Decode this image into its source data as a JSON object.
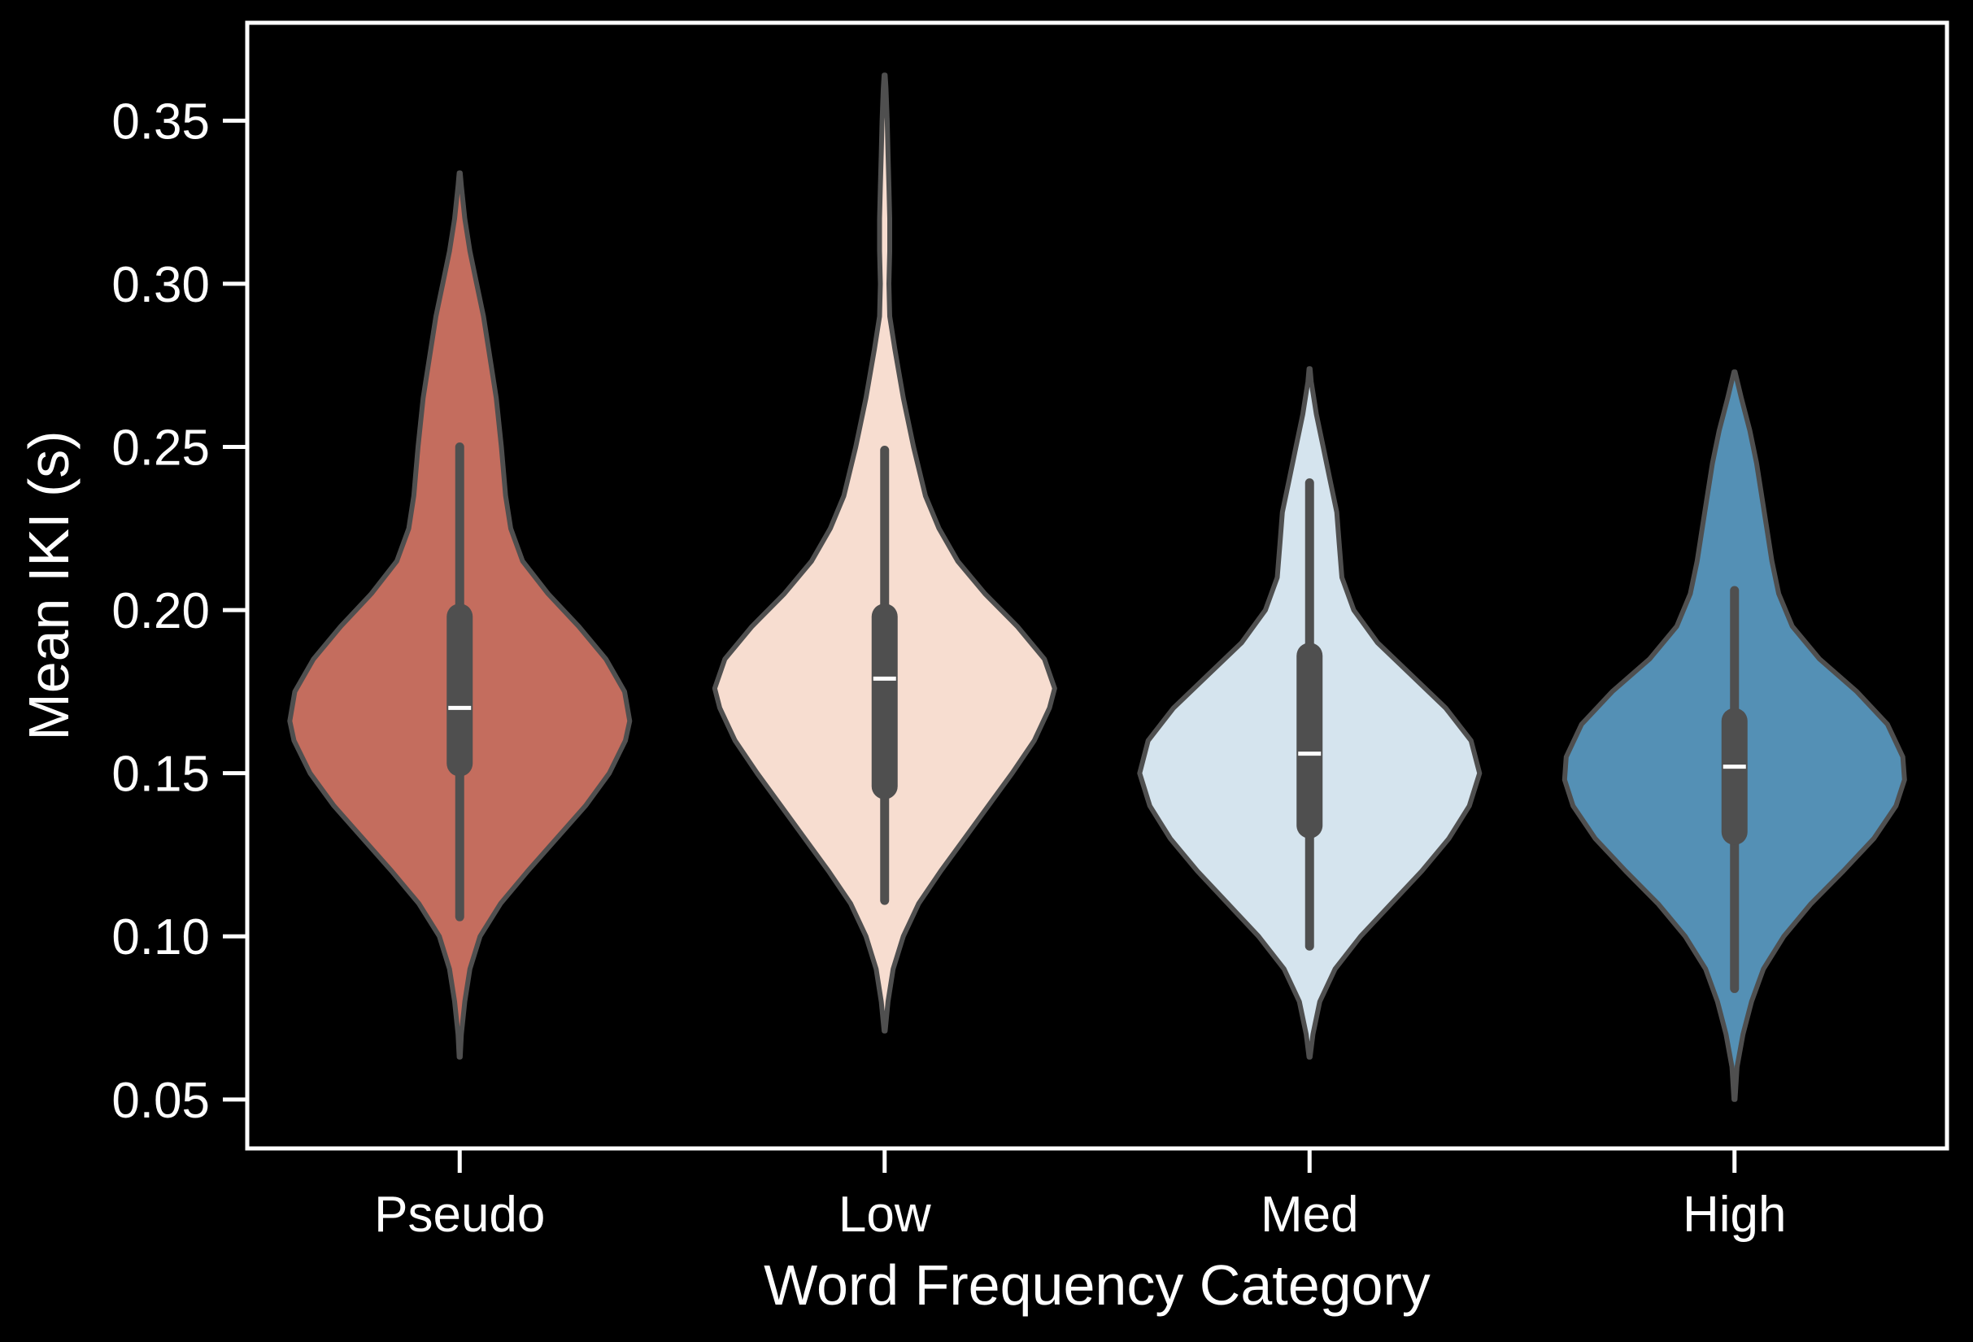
{
  "chart_data": {
    "type": "violin",
    "xlabel": "Word Frequency Category",
    "ylabel": "Mean IKI (s)",
    "ylim": [
      0.035,
      0.38
    ],
    "yticks": [
      0.05,
      0.1,
      0.15,
      0.2,
      0.25,
      0.3,
      0.35
    ],
    "ytick_labels": [
      "0.05",
      "0.10",
      "0.15",
      "0.20",
      "0.25",
      "0.30",
      "0.35"
    ],
    "categories": [
      "Pseudo",
      "Low",
      "Med",
      "High"
    ],
    "grid": false,
    "legend": "none",
    "colors": {
      "background": "#000000",
      "axes": "#ffffff",
      "violin_edge": "#4f4f4f",
      "box": "#4f4f4f",
      "median": "#ffffff"
    },
    "series": [
      {
        "category": "Pseudo",
        "color": "#c46d5e",
        "min": 0.106,
        "q1": 0.153,
        "median": 0.17,
        "q3": 0.198,
        "max": 0.25,
        "density": [
          [
            0.063,
            0.003
          ],
          [
            0.07,
            0.01
          ],
          [
            0.08,
            0.03
          ],
          [
            0.09,
            0.06
          ],
          [
            0.1,
            0.12
          ],
          [
            0.11,
            0.24
          ],
          [
            0.12,
            0.4
          ],
          [
            0.13,
            0.57
          ],
          [
            0.14,
            0.74
          ],
          [
            0.15,
            0.88
          ],
          [
            0.16,
            0.975
          ],
          [
            0.166,
            1.0
          ],
          [
            0.175,
            0.97
          ],
          [
            0.185,
            0.86
          ],
          [
            0.195,
            0.7
          ],
          [
            0.205,
            0.52
          ],
          [
            0.215,
            0.37
          ],
          [
            0.225,
            0.3
          ],
          [
            0.235,
            0.27
          ],
          [
            0.25,
            0.245
          ],
          [
            0.265,
            0.215
          ],
          [
            0.28,
            0.17
          ],
          [
            0.29,
            0.14
          ],
          [
            0.3,
            0.1
          ],
          [
            0.31,
            0.06
          ],
          [
            0.32,
            0.03
          ],
          [
            0.33,
            0.01
          ],
          [
            0.334,
            0.003
          ]
        ]
      },
      {
        "category": "Low",
        "color": "#f7ddd0",
        "min": 0.111,
        "q1": 0.146,
        "median": 0.179,
        "q3": 0.198,
        "max": 0.249,
        "density": [
          [
            0.071,
            0.003
          ],
          [
            0.08,
            0.02
          ],
          [
            0.09,
            0.05
          ],
          [
            0.1,
            0.11
          ],
          [
            0.11,
            0.2
          ],
          [
            0.12,
            0.33
          ],
          [
            0.13,
            0.47
          ],
          [
            0.14,
            0.61
          ],
          [
            0.15,
            0.75
          ],
          [
            0.16,
            0.88
          ],
          [
            0.17,
            0.97
          ],
          [
            0.176,
            1.0
          ],
          [
            0.185,
            0.94
          ],
          [
            0.195,
            0.78
          ],
          [
            0.205,
            0.59
          ],
          [
            0.215,
            0.43
          ],
          [
            0.225,
            0.32
          ],
          [
            0.235,
            0.24
          ],
          [
            0.25,
            0.17
          ],
          [
            0.265,
            0.11
          ],
          [
            0.28,
            0.06
          ],
          [
            0.29,
            0.03
          ],
          [
            0.3,
            0.025
          ],
          [
            0.31,
            0.03
          ],
          [
            0.32,
            0.03
          ],
          [
            0.33,
            0.025
          ],
          [
            0.34,
            0.02
          ],
          [
            0.35,
            0.015
          ],
          [
            0.36,
            0.008
          ],
          [
            0.364,
            0.003
          ]
        ]
      },
      {
        "category": "Med",
        "color": "#d5e4ee",
        "min": 0.097,
        "q1": 0.134,
        "median": 0.156,
        "q3": 0.186,
        "max": 0.239,
        "density": [
          [
            0.063,
            0.003
          ],
          [
            0.07,
            0.02
          ],
          [
            0.08,
            0.06
          ],
          [
            0.09,
            0.15
          ],
          [
            0.1,
            0.3
          ],
          [
            0.11,
            0.48
          ],
          [
            0.12,
            0.66
          ],
          [
            0.13,
            0.82
          ],
          [
            0.14,
            0.94
          ],
          [
            0.15,
            1.0
          ],
          [
            0.16,
            0.95
          ],
          [
            0.17,
            0.8
          ],
          [
            0.18,
            0.6
          ],
          [
            0.19,
            0.4
          ],
          [
            0.2,
            0.26
          ],
          [
            0.21,
            0.19
          ],
          [
            0.22,
            0.175
          ],
          [
            0.23,
            0.16
          ],
          [
            0.24,
            0.12
          ],
          [
            0.25,
            0.08
          ],
          [
            0.26,
            0.04
          ],
          [
            0.27,
            0.01
          ],
          [
            0.274,
            0.003
          ]
        ]
      },
      {
        "category": "High",
        "color": "#5490b5",
        "min": 0.084,
        "q1": 0.132,
        "median": 0.152,
        "q3": 0.166,
        "max": 0.206,
        "density": [
          [
            0.05,
            0.003
          ],
          [
            0.06,
            0.015
          ],
          [
            0.07,
            0.05
          ],
          [
            0.08,
            0.1
          ],
          [
            0.09,
            0.17
          ],
          [
            0.1,
            0.29
          ],
          [
            0.11,
            0.45
          ],
          [
            0.12,
            0.64
          ],
          [
            0.13,
            0.82
          ],
          [
            0.14,
            0.95
          ],
          [
            0.148,
            1.0
          ],
          [
            0.155,
            0.99
          ],
          [
            0.165,
            0.9
          ],
          [
            0.175,
            0.72
          ],
          [
            0.185,
            0.5
          ],
          [
            0.195,
            0.34
          ],
          [
            0.205,
            0.26
          ],
          [
            0.215,
            0.22
          ],
          [
            0.225,
            0.19
          ],
          [
            0.235,
            0.16
          ],
          [
            0.245,
            0.13
          ],
          [
            0.255,
            0.09
          ],
          [
            0.265,
            0.04
          ],
          [
            0.273,
            0.003
          ]
        ]
      }
    ]
  }
}
